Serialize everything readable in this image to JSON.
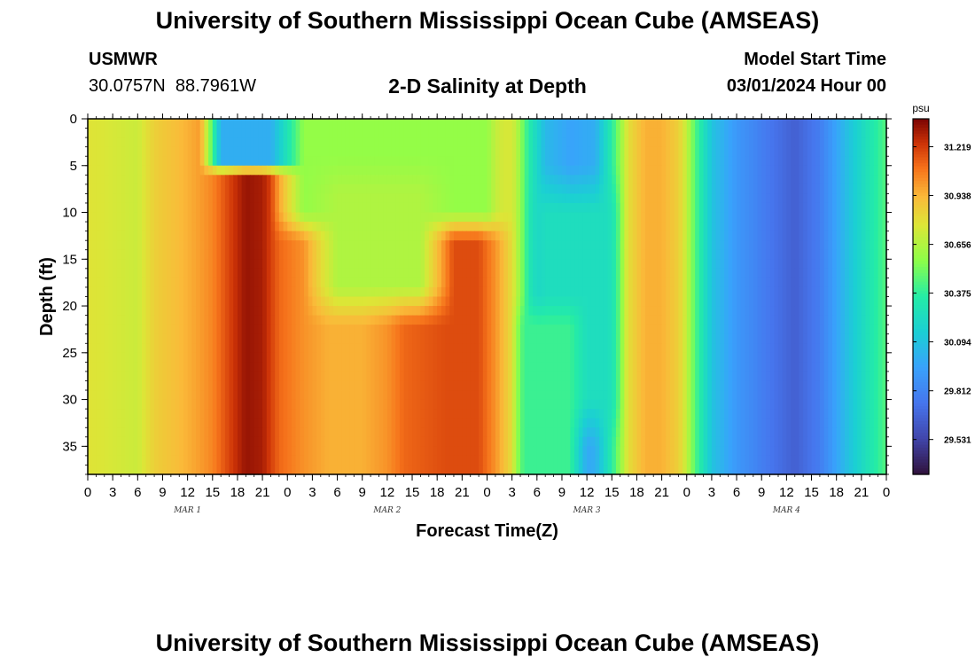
{
  "header": {
    "title": "University of Southern Mississippi Ocean Cube (AMSEAS)",
    "station_name": "USMWR",
    "station_coords": "30.0757N  88.7961W",
    "model_start_label": "Model Start Time",
    "model_start_value": "03/01/2024 Hour 00"
  },
  "footer": {
    "title": "University of Southern Mississippi Ocean Cube (AMSEAS)"
  },
  "chart_data": {
    "type": "heatmap",
    "title": "2-D Salinity at Depth",
    "xlabel": "Forecast Time(Z)",
    "ylabel": "Depth (ft)",
    "x_ticks": [
      "0",
      "3",
      "6",
      "9",
      "12",
      "15",
      "18",
      "21",
      "0",
      "3",
      "6",
      "9",
      "12",
      "15",
      "18",
      "21",
      "0",
      "3",
      "6",
      "9",
      "12",
      "15",
      "18",
      "21",
      "0",
      "3",
      "6",
      "9",
      "12",
      "15",
      "18",
      "21",
      "0"
    ],
    "x_range_hours": [
      0,
      96
    ],
    "day_labels": [
      {
        "label": "MAR 1",
        "hour": 12
      },
      {
        "label": "MAR 2",
        "hour": 36
      },
      {
        "label": "MAR 3",
        "hour": 60
      },
      {
        "label": "MAR 4",
        "hour": 84
      }
    ],
    "y_ticks": [
      0,
      5,
      10,
      15,
      20,
      25,
      30,
      35
    ],
    "y_range": [
      0,
      38
    ],
    "y_inverted": true,
    "colorbar": {
      "unit": "psu",
      "ticks": [
        "31.219",
        "30.938",
        "30.656",
        "30.375",
        "30.094",
        "29.812",
        "29.531"
      ],
      "range": [
        29.33,
        31.38
      ]
    },
    "surface_profile": [
      {
        "h": 0,
        "v": 30.78
      },
      {
        "h": 6,
        "v": 30.72
      },
      {
        "h": 8,
        "v": 30.85
      },
      {
        "h": 11,
        "v": 30.92
      },
      {
        "h": 13,
        "v": 30.98
      },
      {
        "h": 15,
        "v": 31.05
      },
      {
        "h": 17,
        "v": 31.2
      },
      {
        "h": 19,
        "v": 31.33
      },
      {
        "h": 21,
        "v": 31.3
      },
      {
        "h": 23,
        "v": 31.12
      },
      {
        "h": 26,
        "v": 31.02
      },
      {
        "h": 29,
        "v": 30.95
      },
      {
        "h": 33,
        "v": 30.95
      },
      {
        "h": 36,
        "v": 31.02
      },
      {
        "h": 38,
        "v": 31.12
      },
      {
        "h": 43,
        "v": 31.18
      },
      {
        "h": 47,
        "v": 31.18
      },
      {
        "h": 49,
        "v": 31.02
      },
      {
        "h": 51,
        "v": 30.8
      },
      {
        "h": 53,
        "v": 30.35
      },
      {
        "h": 55,
        "v": 30.05
      },
      {
        "h": 58,
        "v": 29.95
      },
      {
        "h": 61,
        "v": 30.0
      },
      {
        "h": 63,
        "v": 30.35
      },
      {
        "h": 65,
        "v": 30.8
      },
      {
        "h": 67,
        "v": 30.95
      },
      {
        "h": 69,
        "v": 30.95
      },
      {
        "h": 71,
        "v": 30.85
      },
      {
        "h": 72,
        "v": 30.7
      },
      {
        "h": 73,
        "v": 30.45
      },
      {
        "h": 75,
        "v": 30.1
      },
      {
        "h": 78,
        "v": 29.9
      },
      {
        "h": 82,
        "v": 29.75
      },
      {
        "h": 85,
        "v": 29.65
      },
      {
        "h": 88,
        "v": 29.78
      },
      {
        "h": 91,
        "v": 30.05
      },
      {
        "h": 94,
        "v": 30.3
      },
      {
        "h": 96,
        "v": 30.45
      }
    ],
    "anomalies": [
      {
        "h0": 16,
        "h1": 26,
        "d0": 0,
        "d1": 4.5,
        "value": 30.0,
        "feather_h": 2.5,
        "feather_d": 1.5
      },
      {
        "h0": 26,
        "h1": 48,
        "d0": 0,
        "d1": 10,
        "value": 30.58,
        "feather_h": 4,
        "feather_d": 3
      },
      {
        "h0": 30,
        "h1": 40,
        "d0": 8,
        "d1": 18,
        "value": 30.65,
        "feather_h": 4,
        "feather_d": 4
      },
      {
        "h0": 55,
        "h1": 62,
        "d0": 10,
        "d1": 30,
        "value": 30.25,
        "feather_h": 2.5,
        "feather_d": 5
      },
      {
        "h0": 53,
        "h1": 58,
        "d0": 22,
        "d1": 38,
        "value": 30.4,
        "feather_h": 2,
        "feather_d": 3
      }
    ]
  }
}
